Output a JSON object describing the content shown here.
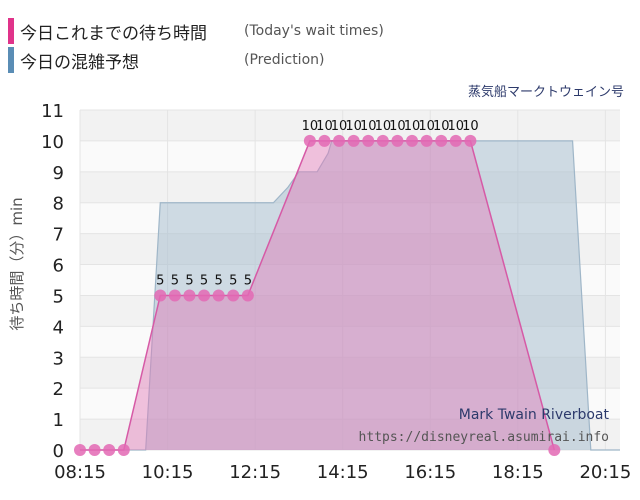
{
  "legend": [
    {
      "label": "今日これまでの待ち時間",
      "sublabel": "(Today's wait times)",
      "color": "#e0338a"
    },
    {
      "label": "今日の混雑予想",
      "sublabel": "(Prediction)",
      "color": "#5a8db5"
    }
  ],
  "attraction_name": "蒸気船マークトウェイン号",
  "watermark": {
    "name_en": "Mark Twain Riverboat",
    "url": "https://disneyreal.asumirai.info"
  },
  "chart_data": {
    "type": "area",
    "ylabel": "待ち時間（分）min",
    "ylim": [
      0,
      11
    ],
    "yticks": [
      0,
      1,
      2,
      3,
      4,
      5,
      6,
      7,
      8,
      9,
      10,
      11
    ],
    "xlim": [
      "08:15",
      "20:35"
    ],
    "xticks": [
      "08:15",
      "10:15",
      "12:15",
      "14:15",
      "16:15",
      "18:15",
      "20:15"
    ],
    "grid": true,
    "series": [
      {
        "name": "今日の混雑予想",
        "color": "#a9bfd0",
        "points": [
          {
            "x": "08:15",
            "y": 0
          },
          {
            "x": "09:45",
            "y": 0
          },
          {
            "x": "10:05",
            "y": 8
          },
          {
            "x": "12:40",
            "y": 8
          },
          {
            "x": "13:00",
            "y": 8.5
          },
          {
            "x": "13:15",
            "y": 9
          },
          {
            "x": "13:40",
            "y": 9
          },
          {
            "x": "13:55",
            "y": 9.6
          },
          {
            "x": "14:00",
            "y": 10
          },
          {
            "x": "19:30",
            "y": 10
          },
          {
            "x": "19:55",
            "y": 0
          },
          {
            "x": "20:35",
            "y": 0
          }
        ]
      },
      {
        "name": "今日これまでの待ち時間",
        "color": "#e27bb8",
        "points": [
          {
            "x": "08:15",
            "y": 0
          },
          {
            "x": "08:35",
            "y": 0
          },
          {
            "x": "08:55",
            "y": 0
          },
          {
            "x": "09:15",
            "y": 0
          },
          {
            "x": "10:05",
            "y": 5
          },
          {
            "x": "10:25",
            "y": 5
          },
          {
            "x": "10:45",
            "y": 5
          },
          {
            "x": "11:05",
            "y": 5
          },
          {
            "x": "11:25",
            "y": 5
          },
          {
            "x": "11:45",
            "y": 5
          },
          {
            "x": "12:05",
            "y": 5
          },
          {
            "x": "13:30",
            "y": 10
          },
          {
            "x": "13:50",
            "y": 10
          },
          {
            "x": "14:10",
            "y": 10
          },
          {
            "x": "14:30",
            "y": 10
          },
          {
            "x": "14:50",
            "y": 10
          },
          {
            "x": "15:10",
            "y": 10
          },
          {
            "x": "15:30",
            "y": 10
          },
          {
            "x": "15:50",
            "y": 10
          },
          {
            "x": "16:10",
            "y": 10
          },
          {
            "x": "16:30",
            "y": 10
          },
          {
            "x": "16:50",
            "y": 10
          },
          {
            "x": "17:10",
            "y": 10
          },
          {
            "x": "19:05",
            "y": 0
          }
        ],
        "data_labels": [
          {
            "x": "10:05",
            "y": 5,
            "text": "5"
          },
          {
            "x": "10:25",
            "y": 5,
            "text": "5"
          },
          {
            "x": "10:45",
            "y": 5,
            "text": "5"
          },
          {
            "x": "11:05",
            "y": 5,
            "text": "5"
          },
          {
            "x": "11:25",
            "y": 5,
            "text": "5"
          },
          {
            "x": "11:45",
            "y": 5,
            "text": "5"
          },
          {
            "x": "12:05",
            "y": 5,
            "text": "5"
          },
          {
            "x": "13:30",
            "y": 10,
            "text": "10"
          },
          {
            "x": "13:50",
            "y": 10,
            "text": "10"
          },
          {
            "x": "14:10",
            "y": 10,
            "text": "10"
          },
          {
            "x": "14:30",
            "y": 10,
            "text": "10"
          },
          {
            "x": "14:50",
            "y": 10,
            "text": "10"
          },
          {
            "x": "15:10",
            "y": 10,
            "text": "10"
          },
          {
            "x": "15:30",
            "y": 10,
            "text": "10"
          },
          {
            "x": "15:50",
            "y": 10,
            "text": "10"
          },
          {
            "x": "16:10",
            "y": 10,
            "text": "10"
          },
          {
            "x": "16:30",
            "y": 10,
            "text": "10"
          },
          {
            "x": "16:50",
            "y": 10,
            "text": "10"
          },
          {
            "x": "17:10",
            "y": 10,
            "text": "10"
          }
        ]
      }
    ]
  }
}
